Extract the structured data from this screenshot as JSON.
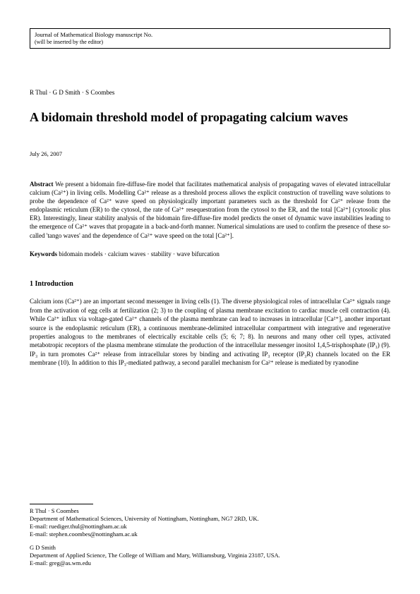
{
  "journal": {
    "line1": "Journal of Mathematical Biology manuscript No.",
    "line2": "(will be inserted by the editor)"
  },
  "authors_line": "R Thul · G D Smith · S Coombes",
  "title": "A bidomain threshold model of propagating calcium waves",
  "date": "July 26, 2007",
  "abstract": {
    "label": "Abstract",
    "text": " We present a bidomain fire-diffuse-fire model that facilitates mathematical analysis of propagating waves of elevated intracellular calcium (Ca²⁺) in living cells. Modelling Ca²⁺ release as a threshold process allows the explicit construction of travelling wave solutions to probe the dependence of Ca²⁺ wave speed on physiologically important parameters such as the threshold for Ca²⁺ release from the endoplasmic reticulum (ER) to the cytosol, the rate of Ca²⁺ resequestration from the cytosol to the ER, and the total [Ca²⁺] (cytosolic plus ER). Interestingly, linear stability analysis of the bidomain fire-diffuse-fire model predicts the onset of dynamic wave instabilities leading to the emergence of Ca²⁺ waves that propagate in a back-and-forth manner. Numerical simulations are used to confirm the presence of these so-called 'tango waves' and the dependence of Ca²⁺ wave speed on the total [Ca²⁺]."
  },
  "keywords": {
    "label": "Keywords",
    "text": " bidomain models · calcium waves · stability · wave bifurcation"
  },
  "section1": {
    "heading": "1 Introduction",
    "body": "Calcium ions (Ca²⁺) are an important second messenger in living cells (1). The diverse physiological roles of intracellular Ca²⁺ signals range from the activation of egg cells at fertilization (2; 3) to the coupling of plasma membrane excitation to cardiac muscle cell contraction (4). While Ca²⁺ influx via voltage-gated Ca²⁺ channels of the plasma membrane can lead to increases in intracellular [Ca²⁺], another important source is the endoplasmic reticulum (ER), a continuous membrane-delimited intracellular compartment with integrative and regenerative properties analogous to the membranes of electrically excitable cells (5; 6; 7; 8). In neurons and many other cell types, activated metabotropic receptors of the plasma membrane stimulate the production of the intracellular messenger inositol 1,4,5-trisphosphate (IP₃) (9). IP₃ in turn promotes Ca²⁺ release from intracellular stores by binding and activating IP₃ receptor (IP₃R) channels located on the ER membrane (10). In addition to this IP₃-mediated pathway, a second parallel mechanism for Ca²⁺ release is mediated by ryanodine"
  },
  "footer": {
    "block1": {
      "names": "R Thul · S Coombes",
      "affil": "Department of Mathematical Sciences, University of Nottingham, Nottingham, NG7 2RD, UK.",
      "email1": "E-mail: ruediger.thul@nottingham.ac.uk",
      "email2": "E-mail: stephen.coombes@nottingham.ac.uk"
    },
    "block2": {
      "names": "G D Smith",
      "affil": "Department of Applied Science, The College of William and Mary, Williamsburg, Virginia 23187, USA.",
      "email1": "E-mail: greg@as.wm.edu"
    }
  }
}
